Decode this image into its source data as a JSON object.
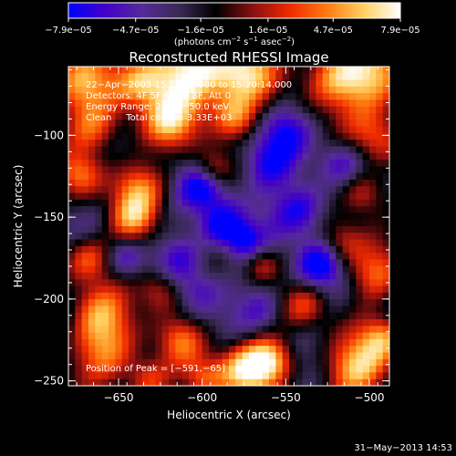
{
  "chart_data": {
    "type": "heatmap",
    "title": "Reconstructed RHESSI Image",
    "xlabel": "Heliocentric X (arcsec)",
    "ylabel": "Heliocentric Y (arcsec)",
    "xlim": [
      -680,
      -488
    ],
    "ylim": [
      -253,
      -58
    ],
    "x_ticks": [
      -650,
      -600,
      -550,
      -500
    ],
    "y_ticks": [
      -100,
      -150,
      -200,
      -250
    ],
    "x_tick_labels": [
      "−650",
      "−600",
      "−550",
      "−500"
    ],
    "y_tick_labels": [
      "−100",
      "−150",
      "−200",
      "−250"
    ],
    "colorbar": {
      "tick_values": [
        -7.9e-05,
        -4.7e-05,
        -1.6e-05,
        1.6e-05,
        4.7e-05,
        7.9e-05
      ],
      "tick_labels": [
        "−7.9e−05",
        "−4.7e−05",
        "−1.6e−05",
        "1.6e−05",
        "4.7e−05",
        "7.9e−05"
      ],
      "units_prefix": "(photons cm",
      "units_exp1": "−2",
      "units_mid": " s",
      "units_exp2": "−1",
      "units_mid2": " asec",
      "units_exp3": "−2",
      "units_suffix": ")",
      "colors": [
        "#0000ff",
        "#4400c8",
        "#552a9a",
        "#3a2a55",
        "#000000",
        "#8a1010",
        "#ee2a00",
        "#ff7a10",
        "#ffd060",
        "#ffffff"
      ]
    },
    "info_lines": [
      "22−Apr−2003 15:14:36.000 to 15:20:14.000",
      "Detectors: 4F 5F 6F 7F 8F, Att 0",
      "Energy Range: 25.0 − 50.0 keV",
      "Clean     Total counts: 3.33E+03"
    ],
    "peak_label": "Position of Peak = [−591,−65]",
    "peak": [
      -591,
      -65
    ],
    "footer_date": "31−May−2013 14:53",
    "grid": false,
    "image_grid_size": [
      48,
      48
    ]
  }
}
